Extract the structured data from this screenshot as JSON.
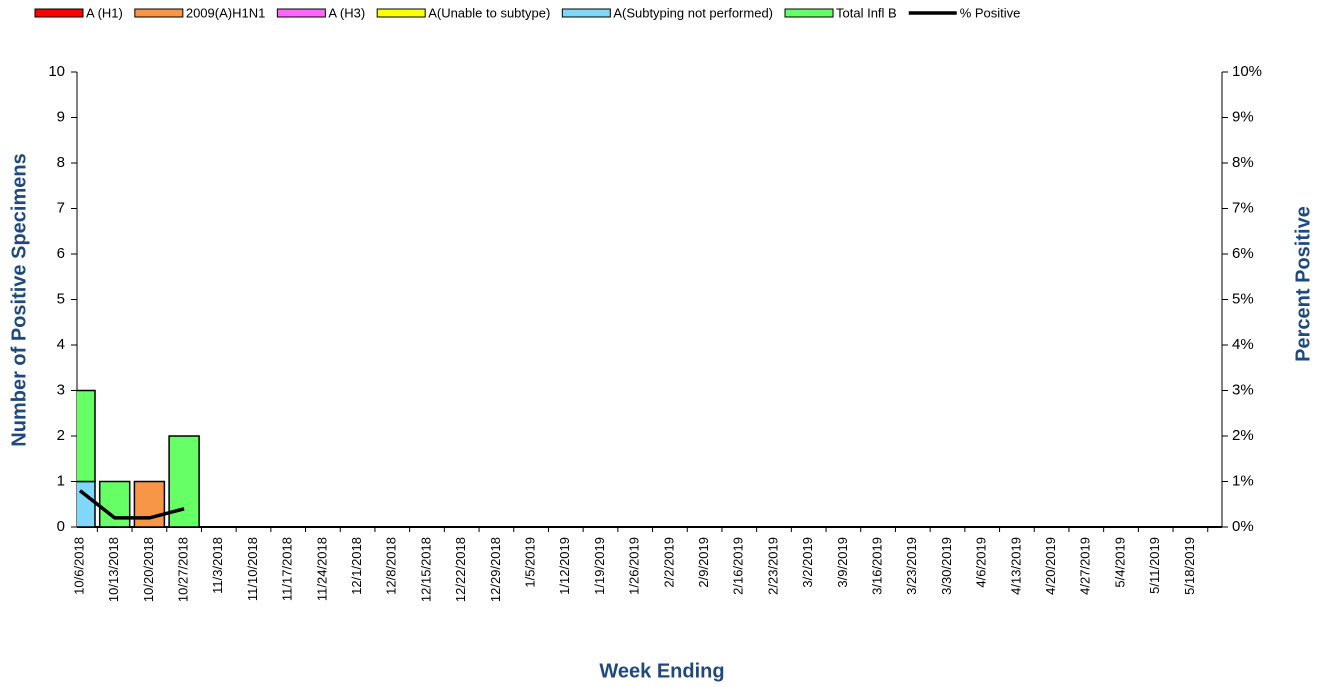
{
  "chart_data": {
    "type": "bar",
    "x_label": "Week Ending",
    "y_label": "Number of  Positive Specimens",
    "y2_label": "Percent Positive",
    "categories": [
      "10/6/2018",
      "10/13/2018",
      "10/20/2018",
      "10/27/2018",
      "11/3/2018",
      "11/10/2018",
      "11/17/2018",
      "11/24/2018",
      "12/1/2018",
      "12/8/2018",
      "12/15/2018",
      "12/22/2018",
      "12/29/2018",
      "1/5/2019",
      "1/12/2019",
      "1/19/2019",
      "1/26/2019",
      "2/2/2019",
      "2/9/2019",
      "2/16/2019",
      "2/23/2019",
      "3/2/2019",
      "3/9/2019",
      "3/16/2019",
      "3/23/2019",
      "3/30/2019",
      "4/6/2019",
      "4/13/2019",
      "4/20/2019",
      "4/27/2019",
      "5/4/2019",
      "5/11/2019",
      "5/18/2019"
    ],
    "series": [
      {
        "name": "A (H1)",
        "color": "#ff0000",
        "values": [
          0,
          0,
          0,
          0,
          null,
          null,
          null,
          null,
          null,
          null,
          null,
          null,
          null,
          null,
          null,
          null,
          null,
          null,
          null,
          null,
          null,
          null,
          null,
          null,
          null,
          null,
          null,
          null,
          null,
          null,
          null,
          null,
          null
        ]
      },
      {
        "name": "2009(A)H1N1",
        "color": "#f79646",
        "values": [
          0,
          0,
          1,
          0,
          null,
          null,
          null,
          null,
          null,
          null,
          null,
          null,
          null,
          null,
          null,
          null,
          null,
          null,
          null,
          null,
          null,
          null,
          null,
          null,
          null,
          null,
          null,
          null,
          null,
          null,
          null,
          null,
          null
        ]
      },
      {
        "name": "A (H3)",
        "color": "#ff66ff",
        "values": [
          0,
          0,
          0,
          0,
          null,
          null,
          null,
          null,
          null,
          null,
          null,
          null,
          null,
          null,
          null,
          null,
          null,
          null,
          null,
          null,
          null,
          null,
          null,
          null,
          null,
          null,
          null,
          null,
          null,
          null,
          null,
          null,
          null
        ]
      },
      {
        "name": "A(Unable to subtype)",
        "color": "#ffff00",
        "values": [
          0,
          0,
          0,
          0,
          null,
          null,
          null,
          null,
          null,
          null,
          null,
          null,
          null,
          null,
          null,
          null,
          null,
          null,
          null,
          null,
          null,
          null,
          null,
          null,
          null,
          null,
          null,
          null,
          null,
          null,
          null,
          null,
          null
        ]
      },
      {
        "name": "A(Subtyping not performed)",
        "color": "#7fd8f7",
        "values": [
          1,
          0,
          0,
          0,
          null,
          null,
          null,
          null,
          null,
          null,
          null,
          null,
          null,
          null,
          null,
          null,
          null,
          null,
          null,
          null,
          null,
          null,
          null,
          null,
          null,
          null,
          null,
          null,
          null,
          null,
          null,
          null,
          null
        ]
      },
      {
        "name": "Total Infl B",
        "color": "#66ff66",
        "values": [
          2,
          1,
          0,
          2,
          null,
          null,
          null,
          null,
          null,
          null,
          null,
          null,
          null,
          null,
          null,
          null,
          null,
          null,
          null,
          null,
          null,
          null,
          null,
          null,
          null,
          null,
          null,
          null,
          null,
          null,
          null,
          null,
          null
        ]
      },
      {
        "name": "% Positive",
        "type": "line",
        "axis": "y2",
        "color": "#000000",
        "values": [
          0.8,
          0.2,
          0.2,
          0.4,
          null,
          null,
          null,
          null,
          null,
          null,
          null,
          null,
          null,
          null,
          null,
          null,
          null,
          null,
          null,
          null,
          null,
          null,
          null,
          null,
          null,
          null,
          null,
          null,
          null,
          null,
          null,
          null,
          null
        ]
      }
    ],
    "ylim": [
      0,
      10
    ],
    "yticks": [
      0,
      1,
      2,
      3,
      4,
      5,
      6,
      7,
      8,
      9,
      10
    ],
    "y2lim": [
      0,
      10
    ],
    "y2ticks": [
      {
        "value": 0,
        "label": "0%"
      },
      {
        "value": 1,
        "label": "1%"
      },
      {
        "value": 2,
        "label": "2%"
      },
      {
        "value": 3,
        "label": "3%"
      },
      {
        "value": 4,
        "label": "4%"
      },
      {
        "value": 5,
        "label": "5%"
      },
      {
        "value": 6,
        "label": "6%"
      },
      {
        "value": 7,
        "label": "7%"
      },
      {
        "value": 8,
        "label": "8%"
      },
      {
        "value": 9,
        "label": "9%"
      },
      {
        "value": 10,
        "label": "10%"
      }
    ]
  }
}
